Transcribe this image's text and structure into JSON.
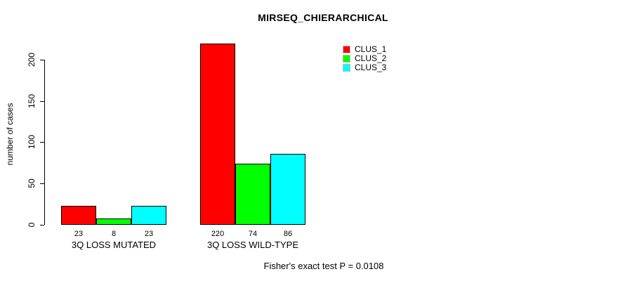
{
  "title": "MIRSEQ_CHIERARCHICAL",
  "footer": "Fisher's exact test P = 0.0108",
  "chart_data": {
    "type": "bar",
    "title": "MIRSEQ_CHIERARCHICAL",
    "categories": [
      "3Q LOSS MUTATED",
      "3Q LOSS WILD-TYPE"
    ],
    "series": [
      {
        "name": "CLUS_1",
        "color": "#ff0000",
        "values": [
          23,
          220
        ]
      },
      {
        "name": "CLUS_2",
        "color": "#00ff00",
        "values": [
          8,
          74
        ]
      },
      {
        "name": "CLUS_3",
        "color": "#00ffff",
        "values": [
          23,
          86
        ]
      }
    ],
    "xlabel": "",
    "ylabel": "number of cases",
    "yticks": [
      0,
      50,
      100,
      150,
      200
    ],
    "ylim": [
      0,
      230
    ],
    "bar_value_labels": [
      [
        "23",
        "8",
        "23"
      ],
      [
        "220",
        "74",
        "86"
      ]
    ],
    "legend_entries": [
      "CLUS_1",
      "CLUS_2",
      "CLUS_3"
    ],
    "legend_position": "top-right",
    "grid": false,
    "annotation": "Fisher's exact test P = 0.0108"
  }
}
